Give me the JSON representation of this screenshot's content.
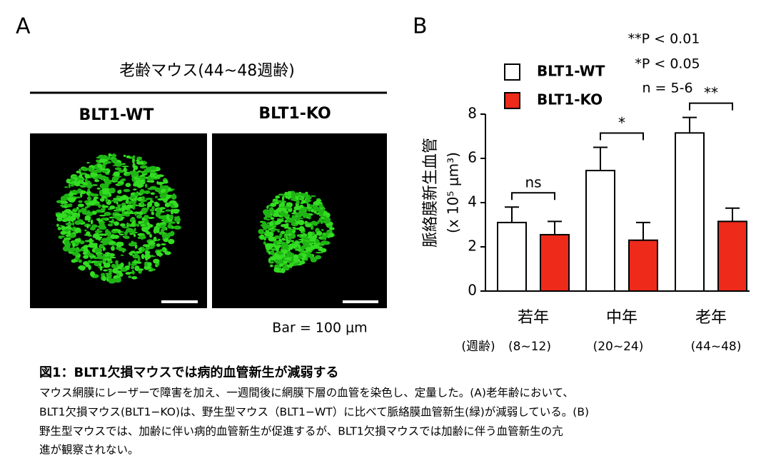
{
  "panel_labels": [
    "A",
    "B"
  ],
  "panel_a": {
    "title": "老齢マウス(44~48週齢)",
    "groups": [
      "BLT1-WT",
      "BLT1-KO"
    ],
    "scale_note": "Bar = 100 μm"
  },
  "chart_data": {
    "type": "bar",
    "ylabel": [
      "脈絡膜新生血管",
      "(x 10⁵ μm³)"
    ],
    "categories": [
      "若年",
      "中年",
      "老年"
    ],
    "x_sublabel_title": "(週齢)",
    "x_sublabels": [
      "(8~12)",
      "(20~24)",
      "(44~48)"
    ],
    "series": [
      {
        "name": "BLT1-WT",
        "color": "#ffffff",
        "values": [
          3.1,
          5.45,
          7.15
        ],
        "errors": [
          0.7,
          1.05,
          0.7
        ]
      },
      {
        "name": "BLT1-KO",
        "color": "#ee2a1a",
        "values": [
          2.55,
          2.3,
          3.15
        ],
        "errors": [
          0.6,
          0.8,
          0.6
        ]
      }
    ],
    "ylim": [
      0,
      8
    ],
    "yticks": [
      0,
      2,
      4,
      6,
      8
    ],
    "significance": [
      "ns",
      "*",
      "**"
    ],
    "annotations": [
      "**P < 0.01",
      "*P < 0.05",
      "n = 5-6"
    ]
  },
  "caption": {
    "title": "図1：BLT1欠損マウスでは病的血管新生が減弱する",
    "lines": [
      "マウス網膜にレーザーで障害を加え、一週間後に網膜下層の血管を染色し、定量した。(A)老年齢において、",
      "BLT1欠損マウス(BLT1−KO)は、野生型マウス（BLT1−WT）に比べて脈絡膜血管新生(緑)が減弱している。(B)",
      "野生型マウスでは、加齢に伴い病的血管新生が促進するが、BLT1欠損マウスでは加齢に伴う血管新生の亢",
      "進が観察されない。"
    ]
  }
}
